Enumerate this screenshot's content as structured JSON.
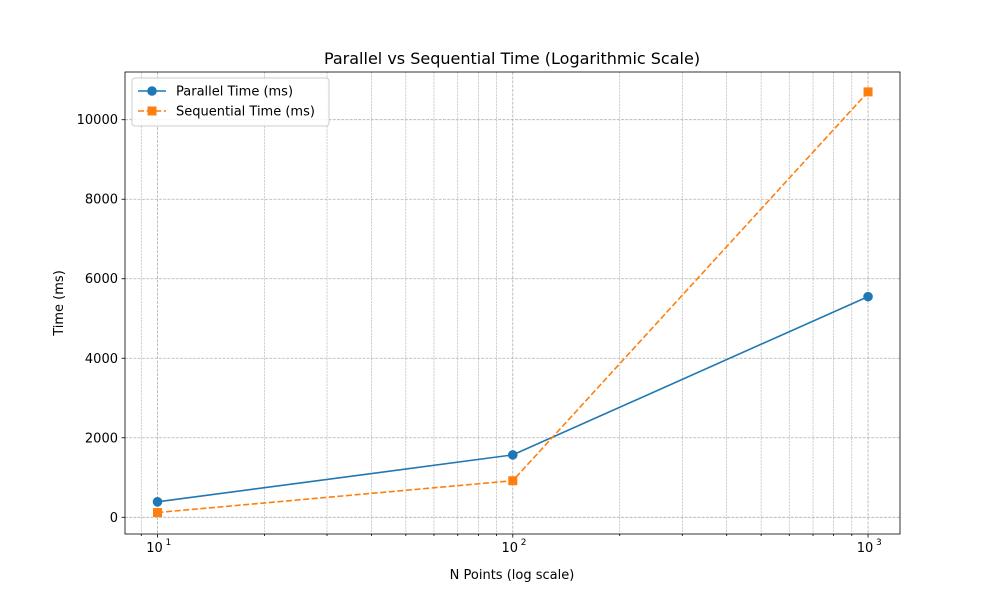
{
  "chart_data": {
    "type": "line",
    "title": "Parallel vs Sequential Time (Logarithmic Scale)",
    "xlabel": "N Points (log scale)",
    "ylabel": "Time (ms)",
    "x_scale": "log",
    "xlim": [
      8.1,
      1230
    ],
    "ylim": [
      -420,
      11200
    ],
    "grid": true,
    "grid_minor": true,
    "legend_position": "top-left",
    "x": [
      10,
      100,
      1000
    ],
    "x_ticks": [
      {
        "value": 10,
        "base": "10",
        "exp": "1"
      },
      {
        "value": 100,
        "base": "10",
        "exp": "2"
      },
      {
        "value": 1000,
        "base": "10",
        "exp": "3"
      }
    ],
    "y_ticks": [
      {
        "value": 0,
        "label": "0"
      },
      {
        "value": 2000,
        "label": "2000"
      },
      {
        "value": 4000,
        "label": "4000"
      },
      {
        "value": 6000,
        "label": "6000"
      },
      {
        "value": 8000,
        "label": "8000"
      },
      {
        "value": 10000,
        "label": "10000"
      }
    ],
    "series": [
      {
        "name": "Parallel Time (ms)",
        "values": [
          390,
          1570,
          5550
        ],
        "color": "#1f77b4",
        "line_style": "solid",
        "marker": "circle"
      },
      {
        "name": "Sequential Time (ms)",
        "values": [
          120,
          920,
          10700
        ],
        "color": "#ff7f0e",
        "line_style": "dashed",
        "marker": "square"
      }
    ]
  }
}
